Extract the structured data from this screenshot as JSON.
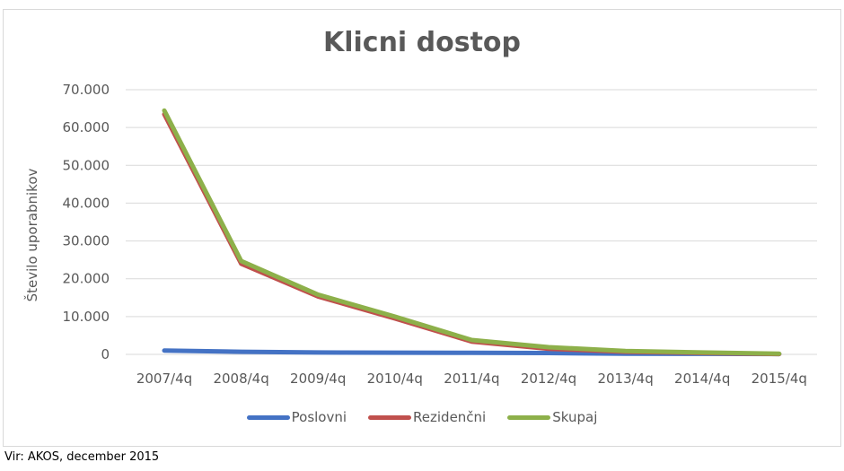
{
  "chart_data": {
    "type": "line",
    "title": "Klicni dostop",
    "xlabel": "",
    "ylabel": "Število uporabnikov",
    "ylim": [
      0,
      70000
    ],
    "yticks": [
      0,
      10000,
      20000,
      30000,
      40000,
      50000,
      60000,
      70000
    ],
    "ytick_labels": [
      "0",
      "10.000",
      "20.000",
      "30.000",
      "40.000",
      "50.000",
      "60.000",
      "70.000"
    ],
    "grid": true,
    "legend_position": "bottom",
    "categories": [
      "2007/4q",
      "2008/4q",
      "2009/4q",
      "2010/4q",
      "2011/4q",
      "2012/4q",
      "2013/4q",
      "2014/4q",
      "2015/4q"
    ],
    "series": [
      {
        "name": "Poslovni",
        "color": "#4472c4",
        "values": [
          1000,
          700,
          500,
          450,
          400,
          350,
          200,
          150,
          100
        ]
      },
      {
        "name": "Rezidenčni",
        "color": "#c0504d",
        "values": [
          63500,
          24000,
          15300,
          9500,
          3400,
          1500,
          700,
          350,
          100
        ]
      },
      {
        "name": "Skupaj",
        "color": "#8db04a",
        "values": [
          64500,
          24700,
          15800,
          10000,
          3800,
          1900,
          900,
          500,
          200
        ]
      }
    ]
  },
  "title": "Klicni dostop",
  "ylabel": "Število uporabnikov",
  "legend": [
    {
      "label": "Poslovni",
      "color": "#4472c4"
    },
    {
      "label": "Rezidenčni",
      "color": "#c0504d"
    },
    {
      "label": "Skupaj",
      "color": "#8db04a"
    }
  ],
  "source": "Vir: AKOS, december 2015"
}
